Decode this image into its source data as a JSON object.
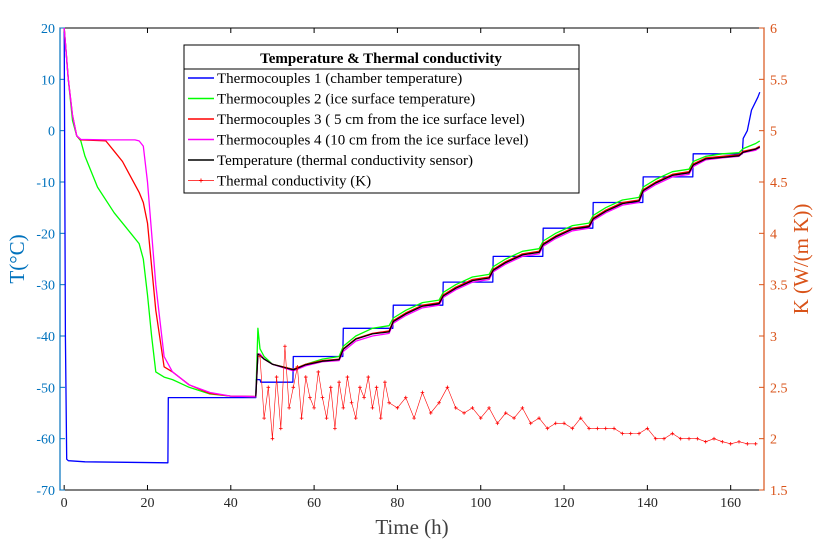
{
  "chart_data": {
    "type": "line",
    "title": "Temperature & Thermal conductivity",
    "xlabel": "Time (h)",
    "ylabel_left": "T(°C)",
    "ylabel_right": "K (W/(m K))",
    "xlim": [
      -1,
      168
    ],
    "ylim_left": [
      -70,
      20
    ],
    "ylim_right": [
      1.5,
      6
    ],
    "xticks": [
      "0",
      "20",
      "40",
      "60",
      "80",
      "100",
      "120",
      "140",
      "160"
    ],
    "yticks_left": [
      "-70",
      "-60",
      "-50",
      "-40",
      "-30",
      "-20",
      "-10",
      "0",
      "10",
      "20"
    ],
    "yticks_right": [
      "1.5",
      "2",
      "2.5",
      "3",
      "3.5",
      "4",
      "4.5",
      "5",
      "5.5",
      "6"
    ],
    "legend_position": "top-center",
    "left_axis_color": "#0072BD",
    "right_axis_color": "#D95319",
    "series": [
      {
        "name": "Thermocouples 1 (chamber temperature)",
        "axis": "left",
        "color": "#0000FF",
        "x": [
          0,
          0.3,
          0.6,
          1,
          5,
          15,
          24.9,
          25,
          30,
          40,
          46,
          46.1,
          47,
          47.2,
          54.9,
          55,
          66.9,
          67,
          78.9,
          79,
          90.9,
          91,
          102.9,
          103,
          114.9,
          115,
          126.9,
          127,
          138.9,
          139,
          150.9,
          151,
          162.8,
          163,
          164,
          165,
          166.5,
          167
        ],
        "y": [
          20,
          -40,
          -64,
          -64.3,
          -64.5,
          -64.6,
          -64.7,
          -52,
          -52,
          -52,
          -52,
          -48.5,
          -48.5,
          -49,
          -49,
          -44,
          -44,
          -38.5,
          -38.5,
          -34,
          -34,
          -29.5,
          -29.5,
          -24.5,
          -24.5,
          -19,
          -19,
          -14,
          -14,
          -9,
          -9,
          -4.5,
          -4.5,
          -1.5,
          0,
          4,
          6.5,
          7.5
        ]
      },
      {
        "name": "Thermocouples 2 (ice surface temperature)",
        "axis": "left",
        "color": "#00FF00",
        "x": [
          0,
          1,
          2,
          3,
          4,
          5,
          8,
          12,
          16,
          18,
          19,
          20,
          21,
          22,
          24,
          26,
          30,
          35,
          40,
          46,
          46.5,
          47,
          48,
          50,
          55,
          58,
          62,
          66,
          67,
          70,
          74,
          78,
          79,
          82,
          86,
          90,
          91,
          94,
          98,
          102,
          103,
          106,
          110,
          114,
          115,
          118,
          122,
          126,
          127,
          130,
          134,
          138,
          139,
          142,
          146,
          150,
          151,
          154,
          158,
          162,
          163,
          166,
          167
        ],
        "y": [
          20,
          10,
          2,
          -1,
          -2,
          -5,
          -11,
          -16,
          -20,
          -22,
          -25,
          -32,
          -40,
          -47,
          -48,
          -48.5,
          -50,
          -51.3,
          -51.7,
          -51.8,
          -38.5,
          -42.5,
          -44,
          -45.5,
          -46.5,
          -45.5,
          -44.5,
          -44,
          -42,
          -40,
          -38.5,
          -38,
          -36.5,
          -35,
          -33.5,
          -33,
          -31.5,
          -30,
          -28.5,
          -28,
          -26.5,
          -25,
          -23.5,
          -23,
          -21.5,
          -20,
          -18.5,
          -18,
          -16.5,
          -15,
          -13.5,
          -13,
          -11,
          -9.5,
          -8,
          -7.5,
          -6,
          -5,
          -4.5,
          -4.3,
          -3.5,
          -2.5,
          -2
        ]
      },
      {
        "name": "Thermocouples 3 ( 5 cm from the ice surface level)",
        "axis": "left",
        "color": "#FF0000",
        "x": [
          0,
          1,
          2,
          3,
          4,
          10,
          12,
          14,
          16,
          18,
          19,
          20,
          22,
          24,
          26,
          30,
          35,
          40,
          46,
          46.5,
          47,
          48,
          50,
          55,
          58,
          62,
          66,
          67,
          70,
          74,
          78,
          79,
          82,
          86,
          90,
          91,
          94,
          98,
          102,
          103,
          106,
          110,
          114,
          115,
          118,
          122,
          126,
          127,
          130,
          134,
          138,
          139,
          142,
          146,
          150,
          151,
          154,
          158,
          162,
          163,
          166,
          167
        ],
        "y": [
          20,
          10,
          3,
          -1,
          -1.8,
          -2,
          -4,
          -6,
          -9,
          -12,
          -14,
          -18,
          -35,
          -46,
          -47,
          -49.5,
          -51.2,
          -51.7,
          -51.8,
          -43.5,
          -43.5,
          -44.5,
          -45.5,
          -46.5,
          -45.5,
          -44.8,
          -44.5,
          -42.5,
          -40.5,
          -39.5,
          -39,
          -37,
          -35.5,
          -34,
          -33.5,
          -32,
          -30.5,
          -29,
          -28.5,
          -27,
          -25.5,
          -24,
          -23.5,
          -22,
          -20.5,
          -19,
          -18.5,
          -17,
          -15.5,
          -14,
          -13.5,
          -11.5,
          -10,
          -8.5,
          -8,
          -6.5,
          -5.3,
          -5,
          -4.7,
          -4,
          -3.5,
          -3
        ]
      },
      {
        "name": "Thermocouples 4 (10 cm from the ice surface level)",
        "axis": "left",
        "color": "#FF00FF",
        "x": [
          0,
          1,
          2,
          3,
          4,
          10,
          15,
          17,
          18,
          19,
          20,
          22,
          24,
          26,
          30,
          35,
          40,
          46,
          46.5,
          47,
          48,
          50,
          55,
          58,
          62,
          66,
          67,
          70,
          74,
          78,
          79,
          82,
          86,
          90,
          91,
          94,
          98,
          102,
          103,
          106,
          110,
          114,
          115,
          118,
          122,
          126,
          127,
          130,
          134,
          138,
          139,
          142,
          146,
          150,
          151,
          154,
          158,
          162,
          163,
          166,
          167
        ],
        "y": [
          20,
          10,
          3,
          -1,
          -1.7,
          -1.8,
          -1.8,
          -1.8,
          -2,
          -3,
          -10,
          -30,
          -44,
          -47,
          -49.5,
          -51,
          -51.7,
          -51.8,
          -43.5,
          -43.5,
          -44.5,
          -45.5,
          -46.8,
          -45.8,
          -45,
          -44.8,
          -43,
          -41,
          -40,
          -39.5,
          -37.5,
          -36,
          -34.5,
          -34,
          -32.5,
          -31,
          -29.5,
          -29,
          -27.5,
          -26,
          -24.5,
          -24,
          -22.5,
          -21,
          -19.5,
          -19,
          -17.5,
          -16,
          -14.5,
          -14,
          -12,
          -10.5,
          -9,
          -8.5,
          -7,
          -5.7,
          -5.3,
          -5,
          -4.3,
          -3.8,
          -3.3
        ]
      },
      {
        "name": "Temperature (thermal conductivity sensor)",
        "axis": "left",
        "color": "#000000",
        "x": [
          46,
          46.5,
          47,
          48,
          50,
          55,
          58,
          62,
          66,
          67,
          70,
          74,
          78,
          79,
          82,
          86,
          90,
          91,
          94,
          98,
          102,
          103,
          106,
          110,
          114,
          115,
          118,
          122,
          126,
          127,
          130,
          134,
          138,
          139,
          142,
          146,
          150,
          151,
          154,
          158,
          162,
          163,
          166,
          167
        ],
        "y": [
          -51.8,
          -43.5,
          -43.8,
          -44.5,
          -45.5,
          -46.6,
          -45.6,
          -44.9,
          -44.6,
          -42.6,
          -40.6,
          -39.6,
          -39.2,
          -37.2,
          -35.7,
          -34.2,
          -33.7,
          -32.2,
          -30.7,
          -29.2,
          -28.7,
          -27.2,
          -25.7,
          -24.2,
          -23.7,
          -22.2,
          -20.7,
          -19.2,
          -18.7,
          -17.2,
          -15.7,
          -14.2,
          -13.7,
          -11.7,
          -10.2,
          -8.7,
          -8.2,
          -6.7,
          -5.5,
          -5.2,
          -4.9,
          -4.2,
          -3.6,
          -3.2
        ]
      },
      {
        "name": "Thermal conductivity (K)",
        "axis": "right",
        "color": "#FF0000",
        "x": [
          47,
          48,
          49,
          50,
          51,
          52,
          53,
          54,
          55,
          56,
          57,
          58,
          59,
          60,
          61,
          62,
          63,
          64,
          65,
          66,
          67,
          68,
          69,
          70,
          71,
          72,
          73,
          74,
          75,
          76,
          77,
          78,
          80,
          82,
          84,
          86,
          88,
          90,
          92,
          94,
          96,
          98,
          100,
          102,
          104,
          106,
          108,
          110,
          112,
          114,
          116,
          118,
          120,
          122,
          124,
          126,
          128,
          130,
          132,
          134,
          136,
          138,
          140,
          142,
          144,
          146,
          148,
          150,
          152,
          154,
          156,
          158,
          160,
          162,
          164,
          166
        ],
        "y": [
          2.8,
          2.2,
          2.5,
          2.0,
          2.6,
          2.1,
          2.9,
          2.3,
          2.5,
          2.7,
          2.2,
          2.6,
          2.4,
          2.3,
          2.65,
          2.4,
          2.2,
          2.5,
          2.1,
          2.55,
          2.3,
          2.6,
          2.35,
          2.2,
          2.5,
          2.4,
          2.6,
          2.3,
          2.5,
          2.2,
          2.55,
          2.35,
          2.3,
          2.4,
          2.2,
          2.45,
          2.25,
          2.35,
          2.5,
          2.3,
          2.25,
          2.3,
          2.2,
          2.3,
          2.15,
          2.25,
          2.2,
          2.3,
          2.15,
          2.2,
          2.1,
          2.15,
          2.15,
          2.1,
          2.2,
          2.1,
          2.1,
          2.1,
          2.1,
          2.05,
          2.05,
          2.05,
          2.1,
          2.0,
          2.0,
          2.05,
          2.0,
          2.0,
          2.0,
          1.97,
          2.0,
          1.97,
          1.95,
          1.97,
          1.95,
          1.95
        ]
      }
    ]
  }
}
